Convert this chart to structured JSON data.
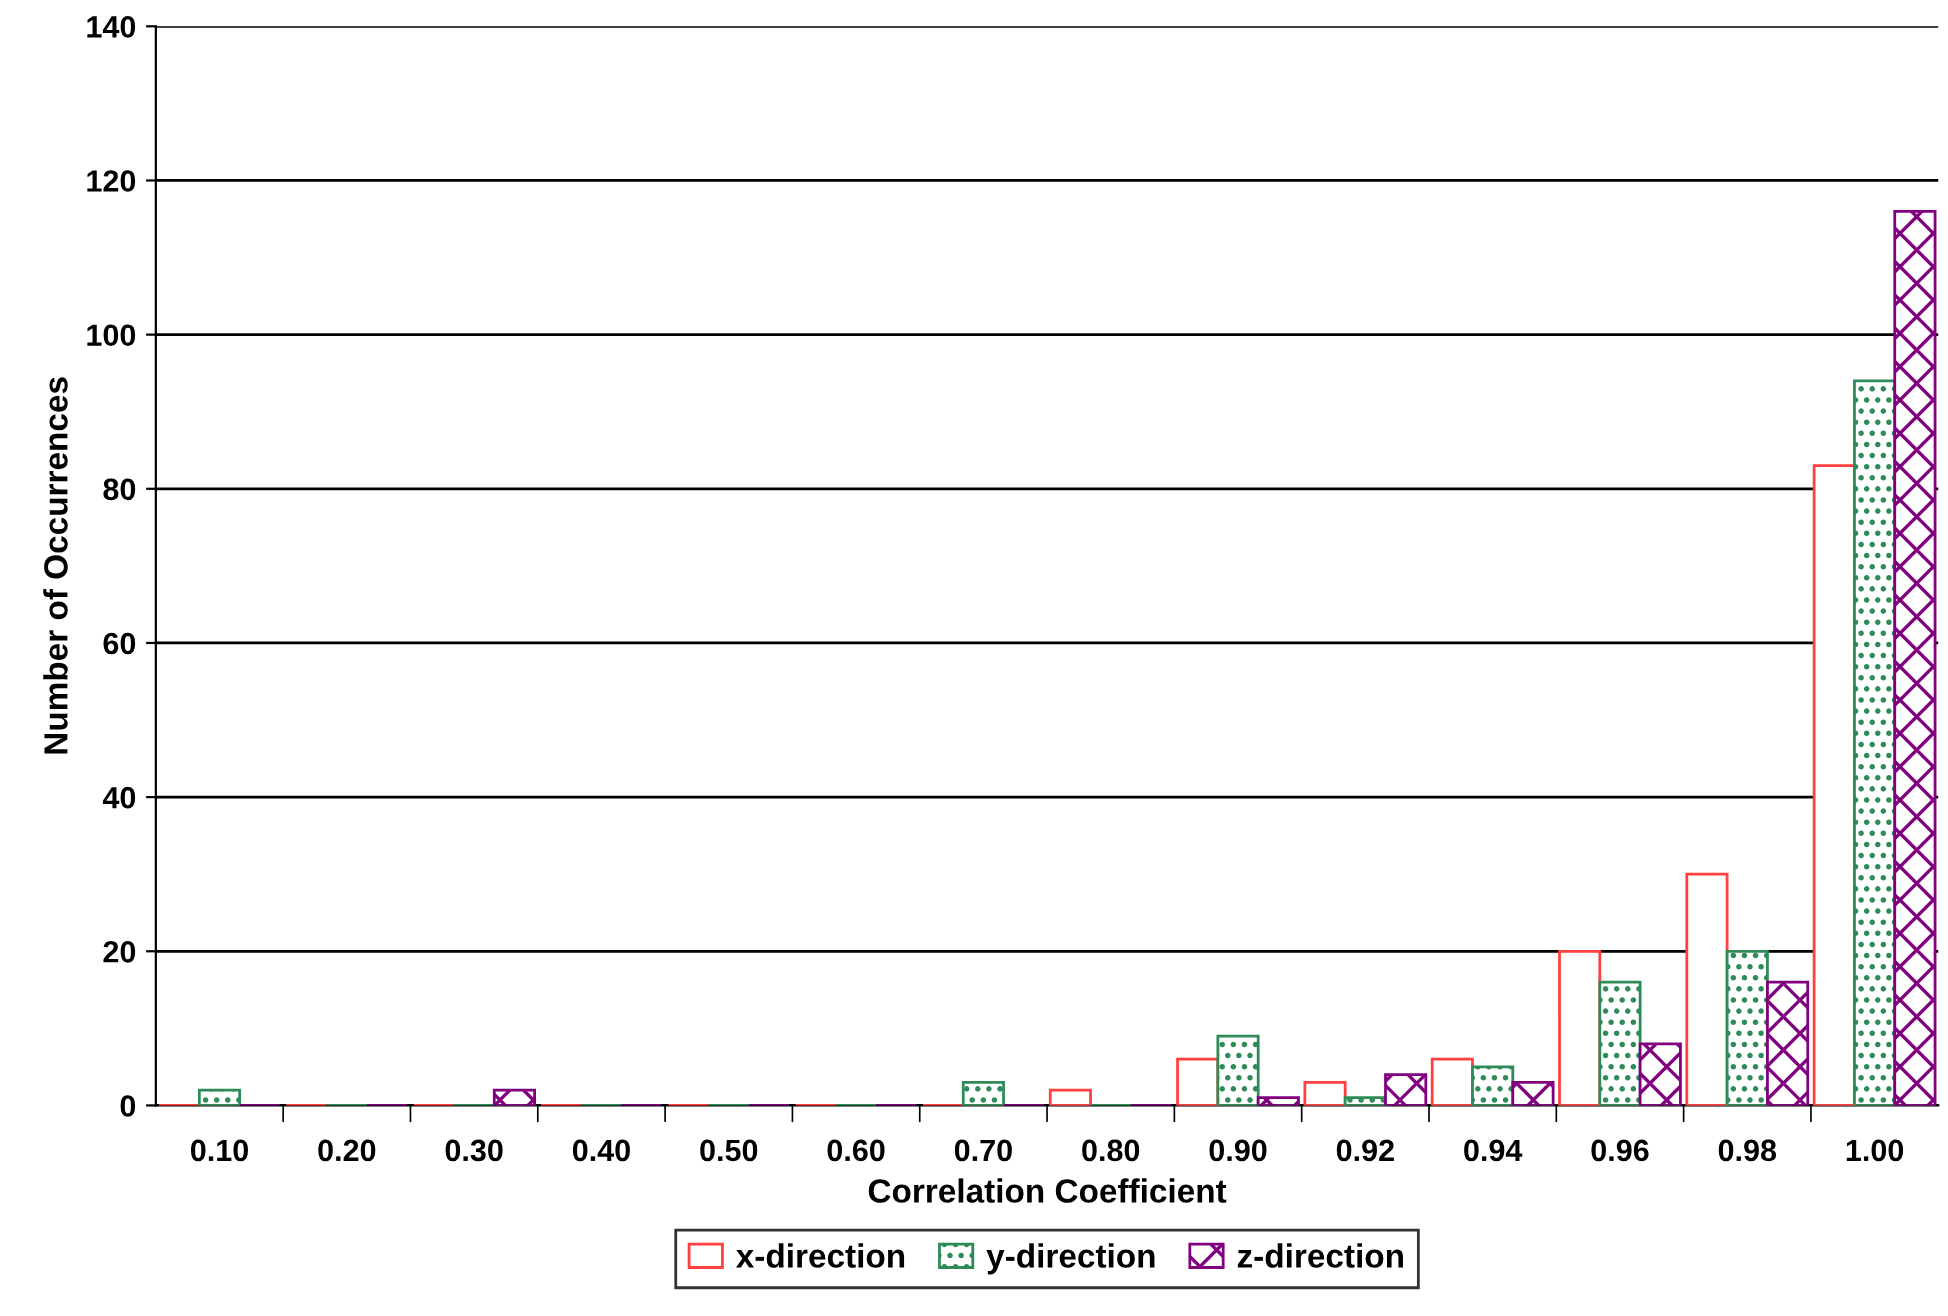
{
  "chart_data": {
    "type": "bar",
    "xlabel": "Correlation Coefficient",
    "ylabel": "Number of Occurrences",
    "categories": [
      "0.10",
      "0.20",
      "0.30",
      "0.40",
      "0.50",
      "0.60",
      "0.70",
      "0.80",
      "0.90",
      "0.92",
      "0.94",
      "0.96",
      "0.98",
      "1.00"
    ],
    "series": [
      {
        "name": "x-direction",
        "color": "#ff4040",
        "values": [
          0,
          0,
          0,
          0,
          0,
          0,
          0,
          2,
          6,
          3,
          6,
          20,
          30,
          83
        ]
      },
      {
        "name": "y-direction",
        "color": "#2e8b57",
        "values": [
          2,
          0,
          0,
          0,
          0,
          0,
          3,
          0,
          9,
          1,
          5,
          16,
          20,
          94
        ]
      },
      {
        "name": "z-direction",
        "color": "#800080",
        "values": [
          0,
          0,
          2,
          0,
          0,
          0,
          0,
          0,
          1,
          4,
          3,
          8,
          16,
          116
        ]
      }
    ],
    "ylim": [
      0,
      140
    ],
    "yticks": [
      0,
      20,
      40,
      60,
      80,
      100,
      120,
      140
    ],
    "grid": "y",
    "legend": "bottom"
  }
}
